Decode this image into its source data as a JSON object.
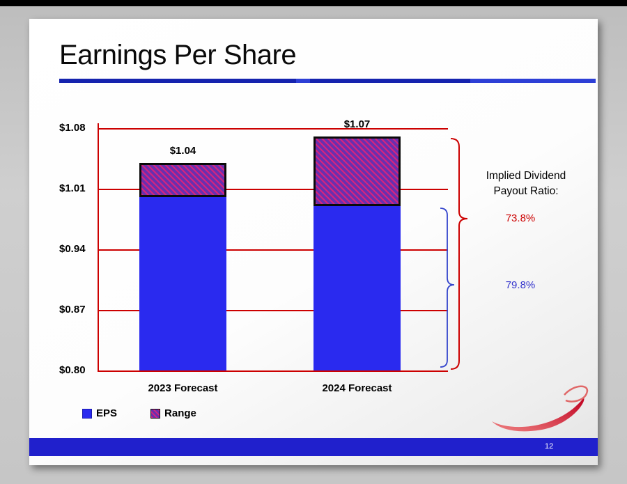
{
  "slide": {
    "title": "Earnings Per Share",
    "page_number": "12"
  },
  "chart_data": {
    "type": "bar",
    "categories": [
      "2023 Forecast",
      "2024 Forecast"
    ],
    "series": [
      {
        "name": "EPS",
        "type": "bar",
        "values": [
          1.0,
          0.99
        ]
      },
      {
        "name": "Range",
        "type": "range",
        "low": [
          1.0,
          0.99
        ],
        "high": [
          1.04,
          1.07
        ]
      }
    ],
    "bar_value_labels": [
      "$1.04",
      "$1.07"
    ],
    "ylim": [
      0.8,
      1.08
    ],
    "y_tick_labels": [
      "$1.08",
      "$1.01",
      "$0.94",
      "$0.87",
      "$0.80"
    ],
    "grid": true,
    "gridline_color": "#cc0000",
    "legend": [
      "EPS",
      "Range"
    ],
    "legend_position": "bottom-left",
    "colors": {
      "eps_bar": "#2a2aef",
      "range_fill": "#6a2fae",
      "range_hatch": "#d6247e",
      "grid": "#cc0000",
      "ratio_red": "#cc0000",
      "ratio_blue": "#3333cc",
      "footer": "#2020cc"
    }
  },
  "annotation": {
    "label": "Implied Dividend Payout Ratio:",
    "ratio_red": "73.8%",
    "ratio_blue": "79.8%"
  }
}
